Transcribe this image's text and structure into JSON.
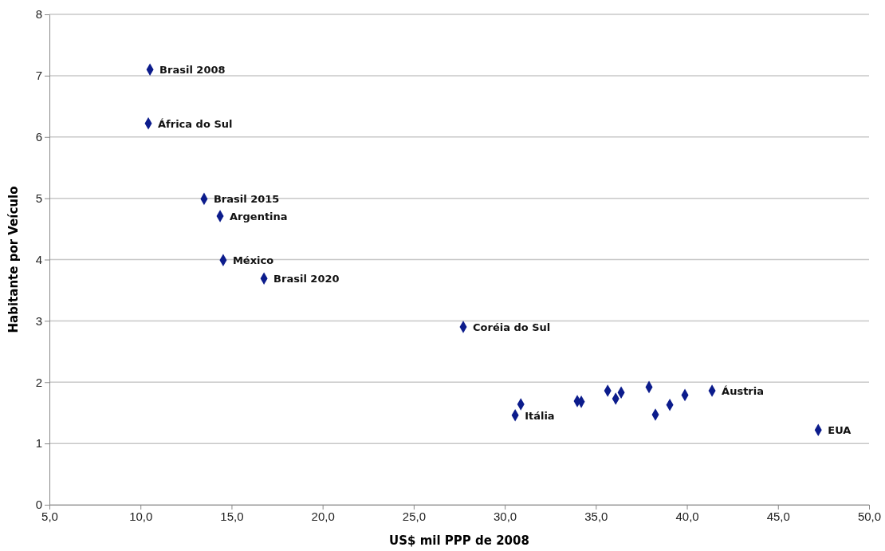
{
  "chart_data": {
    "type": "scatter",
    "xlabel": "US$ mil PPP de 2008",
    "ylabel": "Habitante por Veículo",
    "x": [
      10.52,
      10.43,
      13.49,
      14.37,
      14.54,
      16.78,
      27.72,
      30.57,
      30.88,
      33.98,
      34.2,
      35.65,
      36.09,
      36.39,
      37.92,
      38.27,
      39.06,
      39.89,
      41.38,
      47.21
    ],
    "series": [
      {
        "color": "#0c1c8c",
        "values": [
          7.1,
          6.22,
          4.99,
          4.71,
          3.99,
          3.69,
          2.9,
          1.46,
          1.64,
          1.69,
          1.68,
          1.86,
          1.73,
          1.83,
          1.92,
          1.47,
          1.63,
          1.79,
          1.86,
          1.22
        ],
        "value_labels": [
          "Brasil 2008",
          "África do Sul",
          "Brasil 2015",
          "Argentina",
          "México",
          "Brasil 2020",
          "Coréia do Sul",
          "Itália",
          null,
          null,
          null,
          null,
          null,
          null,
          null,
          null,
          null,
          null,
          "Áustria",
          "EUA"
        ]
      }
    ],
    "xlim": [
      5,
      50
    ],
    "xticks": [
      {
        "value": 5,
        "label": "5,0"
      },
      {
        "value": 10,
        "label": "10,0"
      },
      {
        "value": 15,
        "label": "15,0"
      },
      {
        "value": 20,
        "label": "20,0"
      },
      {
        "value": 25,
        "label": "25,0"
      },
      {
        "value": 30,
        "label": "30,0"
      },
      {
        "value": 35,
        "label": "35,0"
      },
      {
        "value": 40,
        "label": "40,0"
      },
      {
        "value": 45,
        "label": "45,0"
      },
      {
        "value": 50,
        "label": "50,0"
      }
    ],
    "ylim": [
      0,
      8
    ],
    "yticks": [
      0,
      1,
      2,
      3,
      4,
      5,
      6,
      7,
      8
    ],
    "grid": "y",
    "marker": "diamond"
  }
}
